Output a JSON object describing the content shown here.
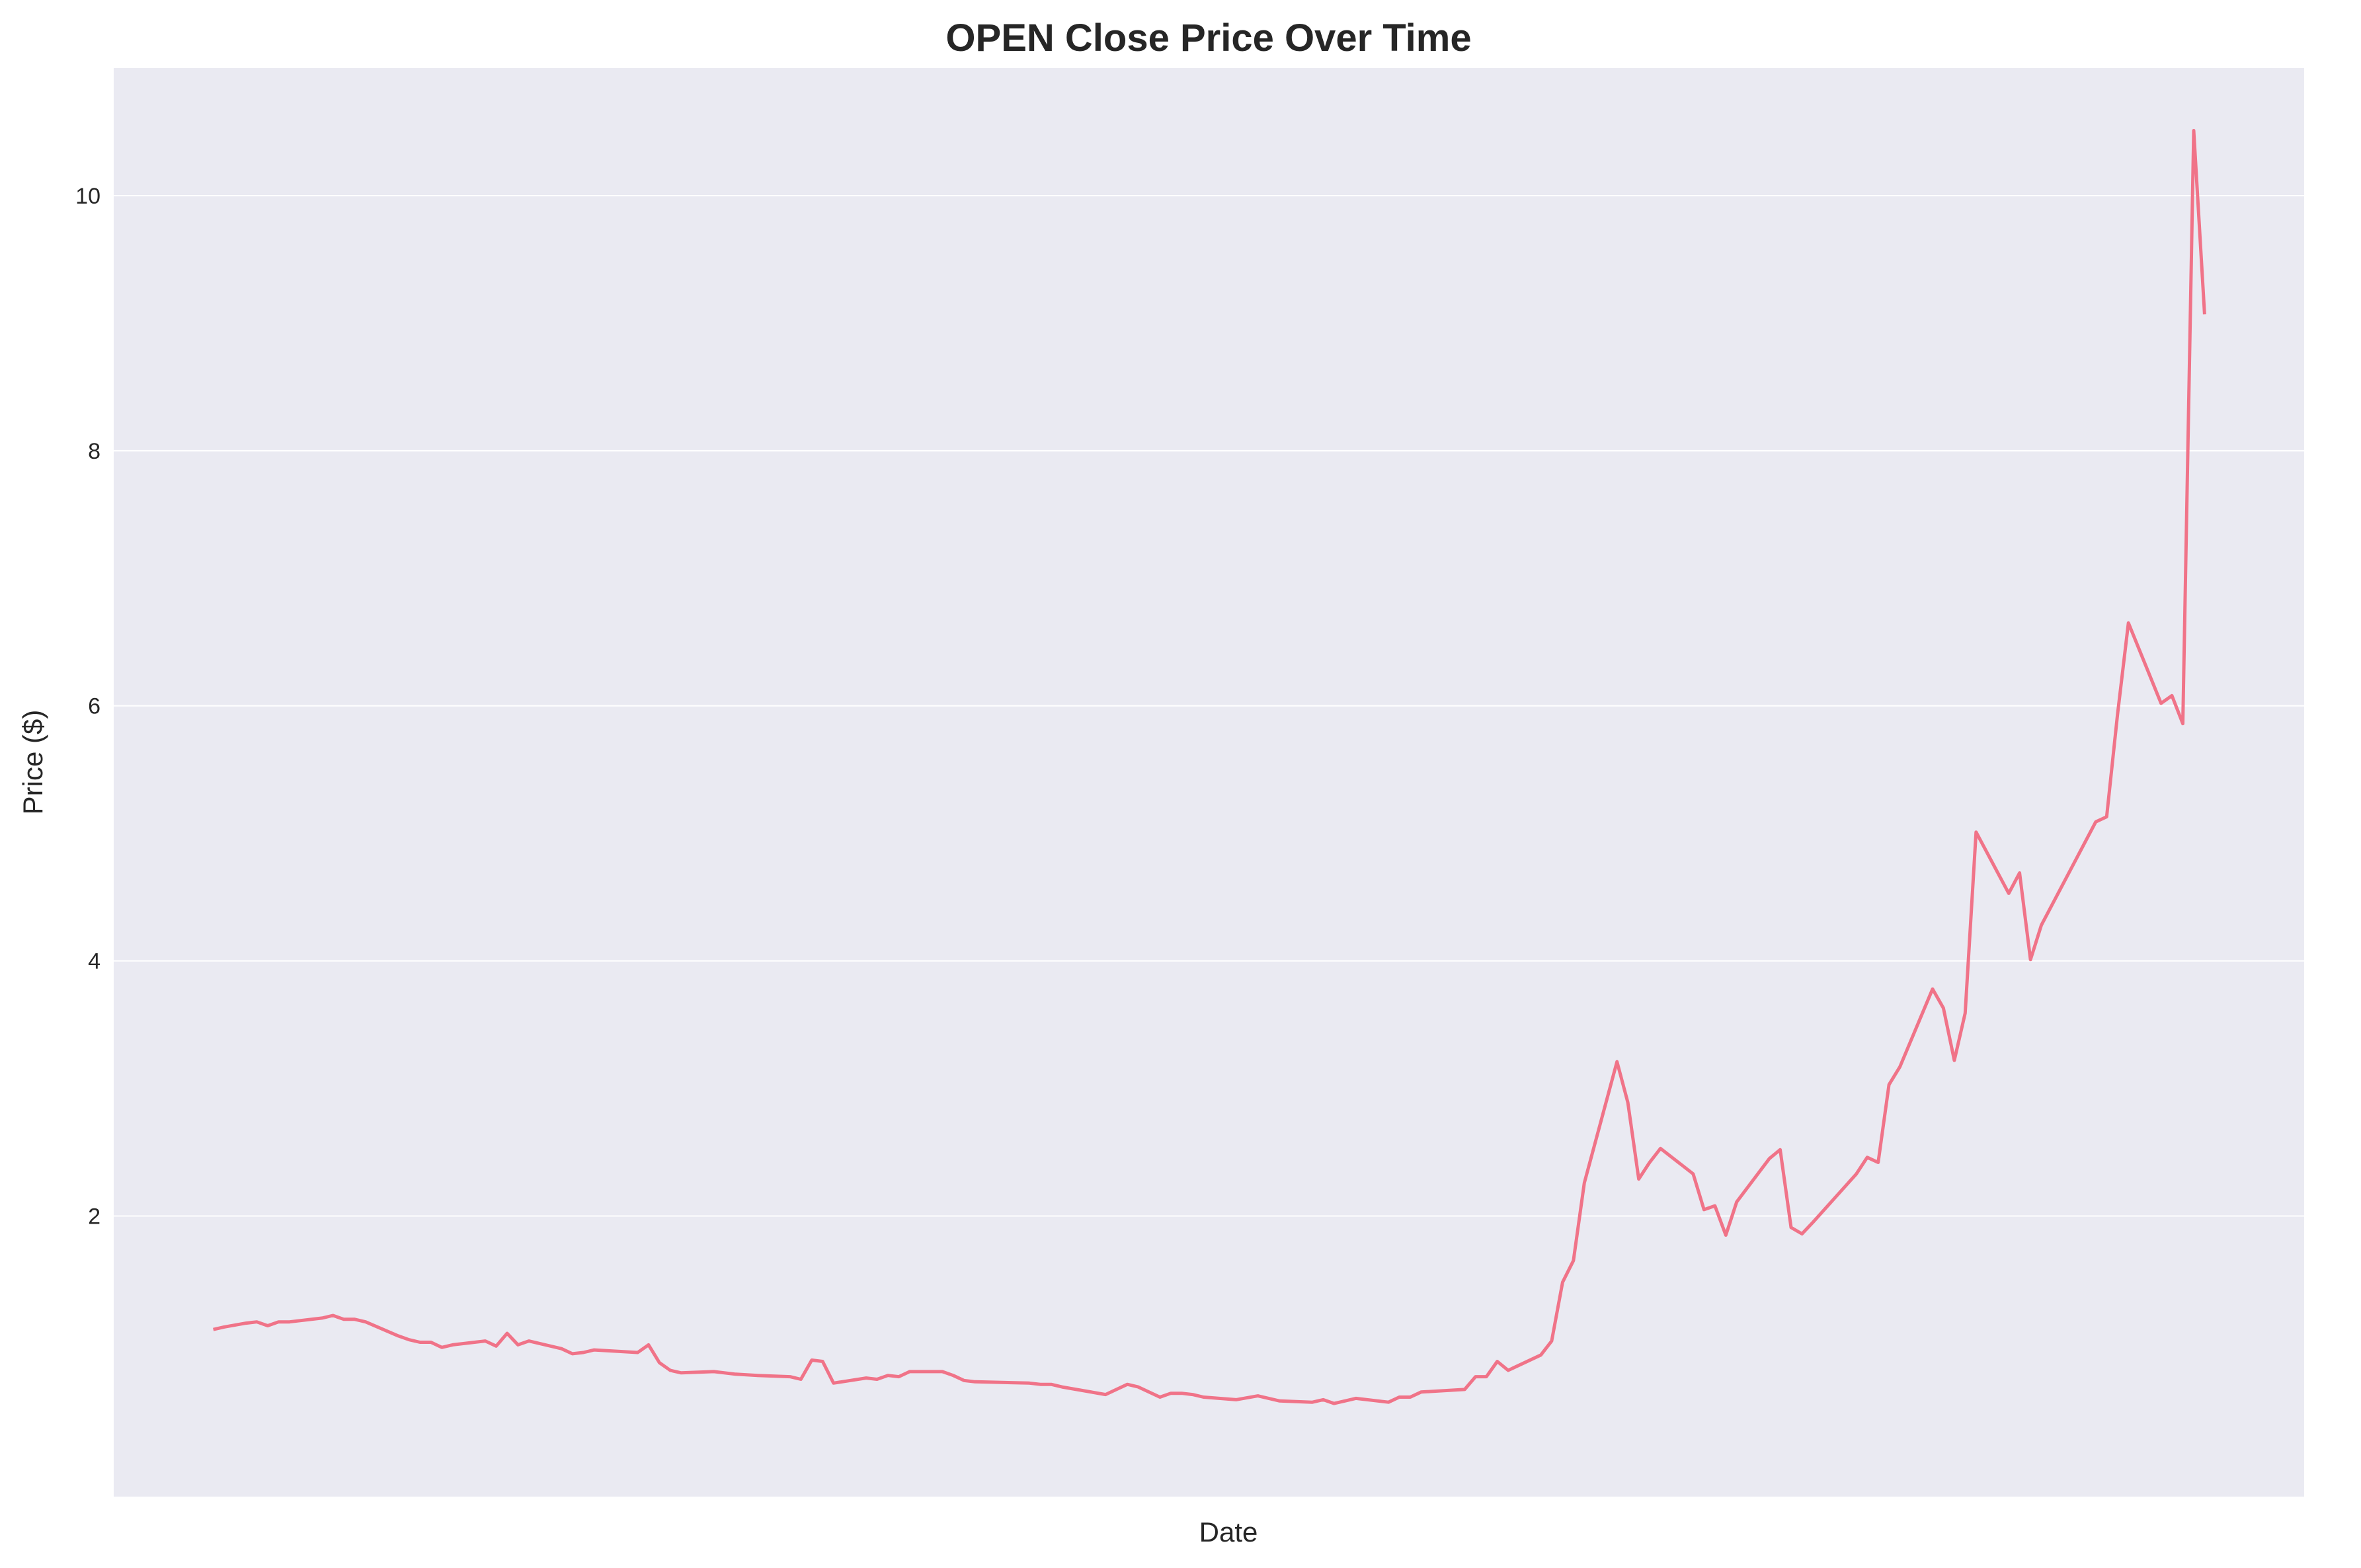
{
  "chart_data": {
    "type": "line",
    "title": "OPEN Close Price Over Time",
    "xlabel": "Date",
    "ylabel": "Price ($)",
    "x_tick_labels": [],
    "y_ticks": [
      2,
      4,
      6,
      8,
      10
    ],
    "ylim": [
      -0.2,
      11.0
    ],
    "grid": true,
    "legend": "none",
    "colors": {
      "background": "#eaeaf2",
      "grid": "#ffffff",
      "line": "#f07388",
      "text": "#262626"
    },
    "series": [
      {
        "points": [
          [
            0,
            1.11
          ],
          [
            1,
            1.13
          ],
          [
            3,
            1.16
          ],
          [
            4,
            1.17
          ],
          [
            5,
            1.14
          ],
          [
            6,
            1.17
          ],
          [
            7,
            1.17
          ],
          [
            10,
            1.2
          ],
          [
            11,
            1.22
          ],
          [
            12,
            1.19
          ],
          [
            13,
            1.19
          ],
          [
            14,
            1.17
          ],
          [
            17,
            1.06
          ],
          [
            18,
            1.03
          ],
          [
            19,
            1.01
          ],
          [
            20,
            1.01
          ],
          [
            21,
            0.97
          ],
          [
            22,
            0.99
          ],
          [
            25,
            1.02
          ],
          [
            26,
            0.98
          ],
          [
            27,
            1.08
          ],
          [
            28,
            0.99
          ],
          [
            29,
            1.02
          ],
          [
            32,
            0.96
          ],
          [
            33,
            0.92
          ],
          [
            34,
            0.93
          ],
          [
            35,
            0.95
          ],
          [
            39,
            0.93
          ],
          [
            40,
            0.99
          ],
          [
            41,
            0.85
          ],
          [
            42,
            0.79
          ],
          [
            43,
            0.77
          ],
          [
            46,
            0.78
          ],
          [
            48,
            0.76
          ],
          [
            50,
            0.75
          ],
          [
            53,
            0.74
          ],
          [
            54,
            0.72
          ],
          [
            55,
            0.87
          ],
          [
            56,
            0.86
          ],
          [
            57,
            0.69
          ],
          [
            60,
            0.73
          ],
          [
            61,
            0.72
          ],
          [
            62,
            0.75
          ],
          [
            63,
            0.74
          ],
          [
            64,
            0.78
          ],
          [
            67,
            0.78
          ],
          [
            68,
            0.75
          ],
          [
            69,
            0.71
          ],
          [
            70,
            0.7
          ],
          [
            75,
            0.69
          ],
          [
            76,
            0.68
          ],
          [
            77,
            0.68
          ],
          [
            78,
            0.66
          ],
          [
            82,
            0.6
          ],
          [
            83,
            0.64
          ],
          [
            84,
            0.68
          ],
          [
            85,
            0.66
          ],
          [
            87,
            0.58
          ],
          [
            88,
            0.61
          ],
          [
            89,
            0.61
          ],
          [
            90,
            0.6
          ],
          [
            91,
            0.58
          ],
          [
            94,
            0.56
          ],
          [
            96,
            0.59
          ],
          [
            98,
            0.55
          ],
          [
            101,
            0.54
          ],
          [
            102,
            0.56
          ],
          [
            103,
            0.53
          ],
          [
            105,
            0.57
          ],
          [
            108,
            0.54
          ],
          [
            109,
            0.58
          ],
          [
            110,
            0.58
          ],
          [
            111,
            0.62
          ],
          [
            115,
            0.64
          ],
          [
            116,
            0.74
          ],
          [
            117,
            0.74
          ],
          [
            118,
            0.86
          ],
          [
            119,
            0.79
          ],
          [
            122,
            0.91
          ],
          [
            123,
            1.02
          ],
          [
            124,
            1.48
          ],
          [
            125,
            1.65
          ],
          [
            126,
            2.26
          ],
          [
            129,
            3.21
          ],
          [
            130,
            2.89
          ],
          [
            131,
            2.29
          ],
          [
            132,
            2.42
          ],
          [
            133,
            2.53
          ],
          [
            136,
            2.33
          ],
          [
            137,
            2.05
          ],
          [
            138,
            2.08
          ],
          [
            139,
            1.85
          ],
          [
            140,
            2.11
          ],
          [
            143,
            2.45
          ],
          [
            144,
            2.52
          ],
          [
            145,
            1.91
          ],
          [
            146,
            1.86
          ],
          [
            147,
            1.95
          ],
          [
            151,
            2.33
          ],
          [
            152,
            2.46
          ],
          [
            153,
            2.42
          ],
          [
            154,
            3.03
          ],
          [
            155,
            3.17
          ],
          [
            158,
            3.78
          ],
          [
            159,
            3.63
          ],
          [
            160,
            3.22
          ],
          [
            161,
            3.59
          ],
          [
            162,
            5.01
          ],
          [
            165,
            4.53
          ],
          [
            166,
            4.69
          ],
          [
            167,
            4.01
          ],
          [
            168,
            4.28
          ],
          [
            173,
            5.09
          ],
          [
            174,
            5.13
          ],
          [
            175,
            5.93
          ],
          [
            176,
            6.65
          ],
          [
            179,
            6.02
          ],
          [
            180,
            6.08
          ],
          [
            181,
            5.86
          ],
          [
            182,
            10.51
          ],
          [
            183,
            9.07
          ]
        ]
      }
    ]
  }
}
